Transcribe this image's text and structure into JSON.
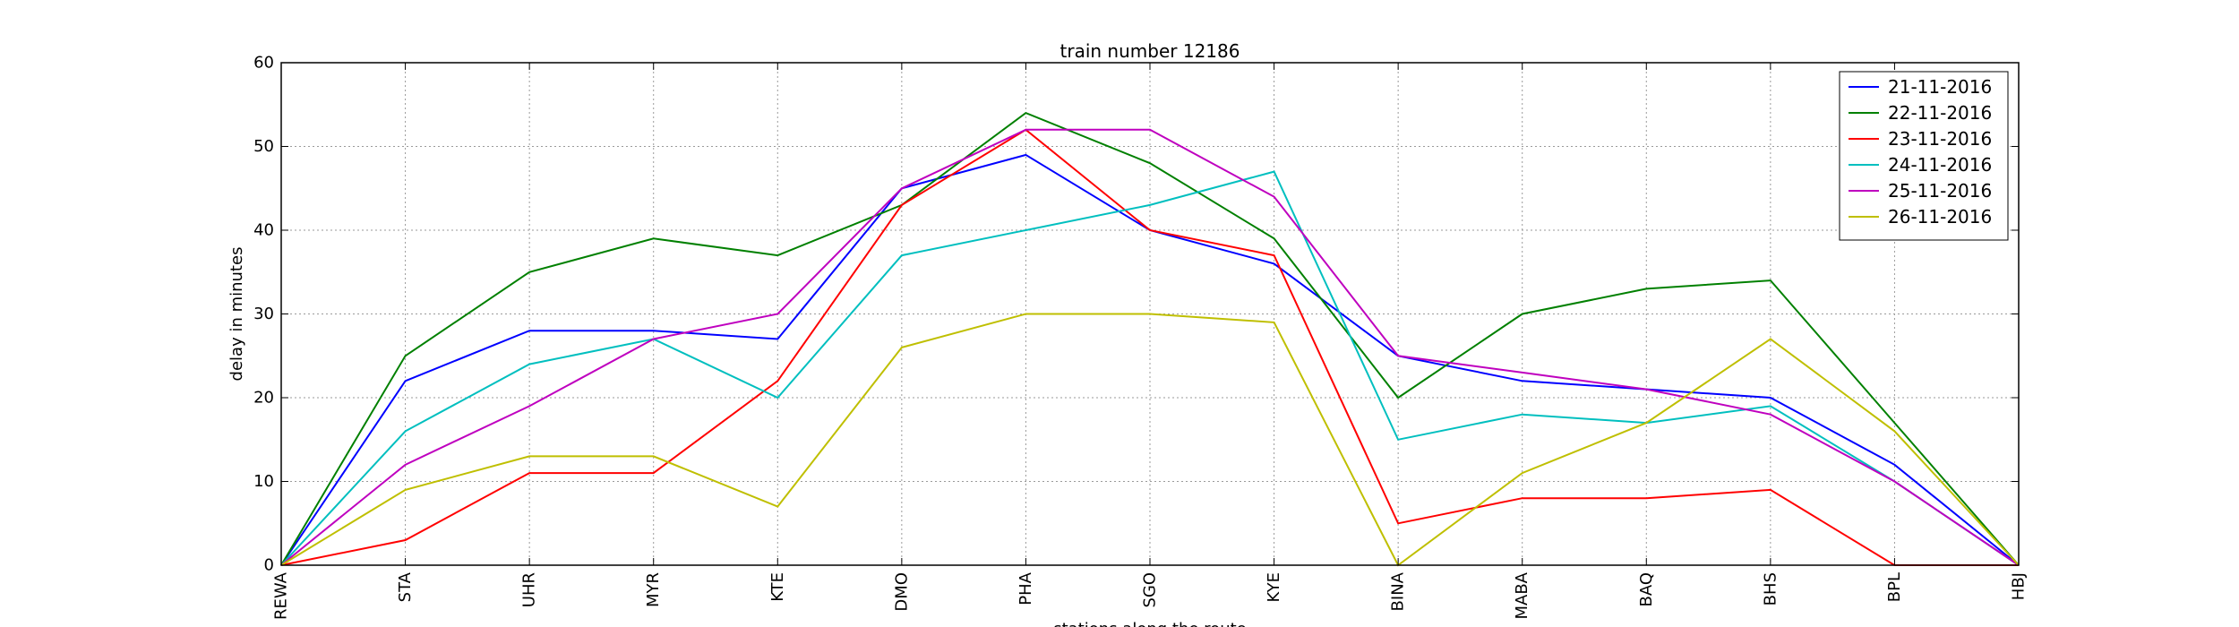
{
  "chart_data": {
    "type": "line",
    "title": "train number 12186",
    "xlabel": "stations along the route",
    "ylabel": "delay in minutes",
    "categories": [
      "REWA",
      "STA",
      "UHR",
      "MYR",
      "KTE",
      "DMO",
      "PHA",
      "SGO",
      "KYE",
      "BINA",
      "MABA",
      "BAQ",
      "BHS",
      "BPL",
      "HBJ"
    ],
    "ylim": [
      0,
      60
    ],
    "yticks": [
      0,
      10,
      20,
      30,
      40,
      50,
      60
    ],
    "grid": true,
    "legend_position": "top-right",
    "series": [
      {
        "name": "21-11-2016",
        "color": "#0000ff",
        "values": [
          0,
          22,
          28,
          28,
          27,
          45,
          49,
          40,
          36,
          25,
          22,
          21,
          20,
          12,
          0
        ]
      },
      {
        "name": "22-11-2016",
        "color": "#008000",
        "values": [
          0,
          25,
          35,
          39,
          37,
          43,
          54,
          48,
          39,
          20,
          30,
          33,
          34,
          17,
          0
        ]
      },
      {
        "name": "23-11-2016",
        "color": "#ff0000",
        "values": [
          0,
          3,
          11,
          11,
          22,
          43,
          52,
          40,
          37,
          5,
          8,
          8,
          9,
          0,
          0
        ]
      },
      {
        "name": "24-11-2016",
        "color": "#00bfbf",
        "values": [
          0,
          16,
          24,
          27,
          20,
          37,
          40,
          43,
          47,
          15,
          18,
          17,
          19,
          10,
          0
        ]
      },
      {
        "name": "25-11-2016",
        "color": "#bf00bf",
        "values": [
          0,
          12,
          19,
          27,
          30,
          45,
          52,
          52,
          44,
          25,
          23,
          21,
          18,
          10,
          0
        ]
      },
      {
        "name": "26-11-2016",
        "color": "#bfbf00",
        "values": [
          0,
          9,
          13,
          13,
          7,
          26,
          30,
          30,
          29,
          0,
          11,
          17,
          27,
          16,
          0
        ]
      }
    ]
  }
}
